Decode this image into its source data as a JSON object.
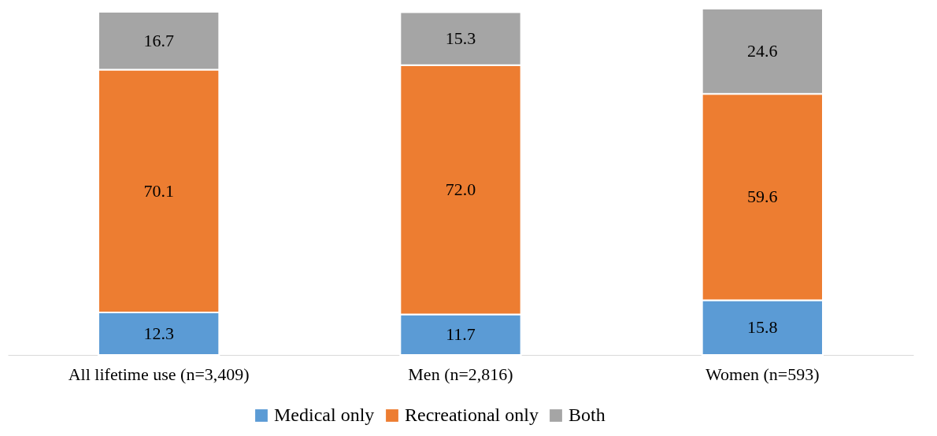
{
  "chart_data": {
    "type": "bar",
    "stacked": true,
    "legend": "bottom",
    "tick_labels": "x",
    "ylim": [
      0,
      100
    ],
    "categories": [
      "All lifetime use (n=3,409)",
      "Men (n=2,816)",
      "Women (n=593)"
    ],
    "series": [
      {
        "name": "Medical only",
        "color": "#5b9bd5",
        "values": [
          12.3,
          11.7,
          15.8
        ],
        "value_labels": [
          "12.3",
          "11.7",
          "15.8"
        ]
      },
      {
        "name": "Recreational only",
        "color": "#ed7d31",
        "values": [
          70.1,
          72.0,
          59.6
        ],
        "value_labels": [
          "70.1",
          "72.0",
          "59.6"
        ]
      },
      {
        "name": "Both",
        "color": "#a5a5a5",
        "values": [
          16.7,
          15.3,
          24.6
        ],
        "value_labels": [
          "16.7",
          "15.3",
          "24.6"
        ]
      }
    ]
  }
}
